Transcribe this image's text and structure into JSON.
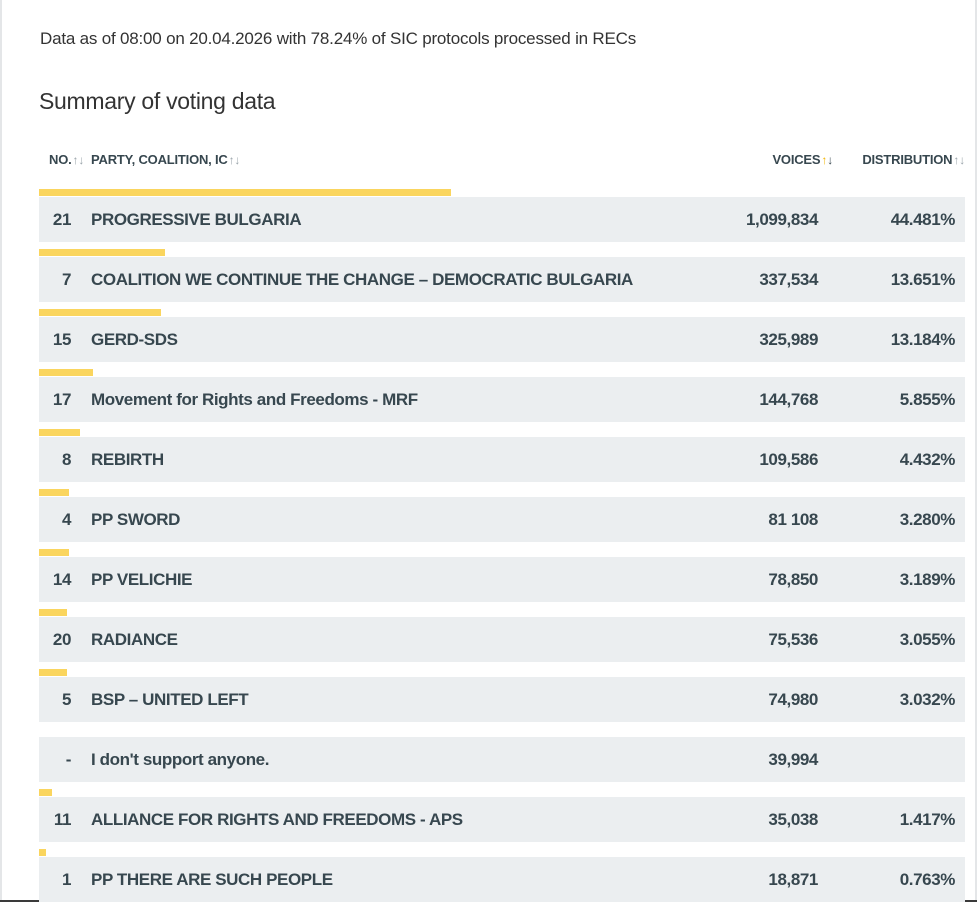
{
  "status_line": "Data as of 08:00 on 20.04.2026 with 78.24% of SIC protocols processed in RECs",
  "section_title": "Summary of voting data",
  "columns": {
    "no": "NO.",
    "party": "PARTY, COALITION, IC",
    "voices": "VOICES",
    "distribution": "DISTRIBUTION"
  },
  "sort_icons": {
    "up": "↑",
    "down": "↓",
    "active_up_color": "#f2b400"
  },
  "colors": {
    "bar": "#fad55e",
    "row_background": "#ebeef0",
    "text": "#37474f"
  },
  "rows": [
    {
      "no": "21",
      "party": "PROGRESSIVE BULGARIA",
      "votes": "1,099,834",
      "pct": "44.481%",
      "share": 44.481
    },
    {
      "no": "7",
      "party": "COALITION WE CONTINUE THE CHANGE – DEMOCRATIC BULGARIA",
      "votes": "337,534",
      "pct": "13.651%",
      "share": 13.651
    },
    {
      "no": "15",
      "party": "GERD-SDS",
      "votes": "325,989",
      "pct": "13.184%",
      "share": 13.184
    },
    {
      "no": "17",
      "party": "Movement for Rights and Freedoms - MRF",
      "votes": "144,768",
      "pct": "5.855%",
      "share": 5.855
    },
    {
      "no": "8",
      "party": "REBIRTH",
      "votes": "109,586",
      "pct": "4.432%",
      "share": 4.432
    },
    {
      "no": "4",
      "party": "PP SWORD",
      "votes": "81 108",
      "pct": "3.280%",
      "share": 3.28
    },
    {
      "no": "14",
      "party": "PP VELICHIE",
      "votes": "78,850",
      "pct": "3.189%",
      "share": 3.189
    },
    {
      "no": "20",
      "party": "RADIANCE",
      "votes": "75,536",
      "pct": "3.055%",
      "share": 3.055
    },
    {
      "no": "5",
      "party": "BSP – UNITED LEFT",
      "votes": "74,980",
      "pct": "3.032%",
      "share": 3.032
    },
    {
      "no": "-",
      "party": "I don't support anyone.",
      "votes": "39,994",
      "pct": "",
      "share": 0
    },
    {
      "no": "11",
      "party": "ALLIANCE FOR RIGHTS AND FREEDOMS - APS",
      "votes": "35,038",
      "pct": "1.417%",
      "share": 1.417
    },
    {
      "no": "1",
      "party": "PP THERE ARE SUCH PEOPLE",
      "votes": "18,871",
      "pct": "0.763%",
      "share": 0.763
    }
  ]
}
